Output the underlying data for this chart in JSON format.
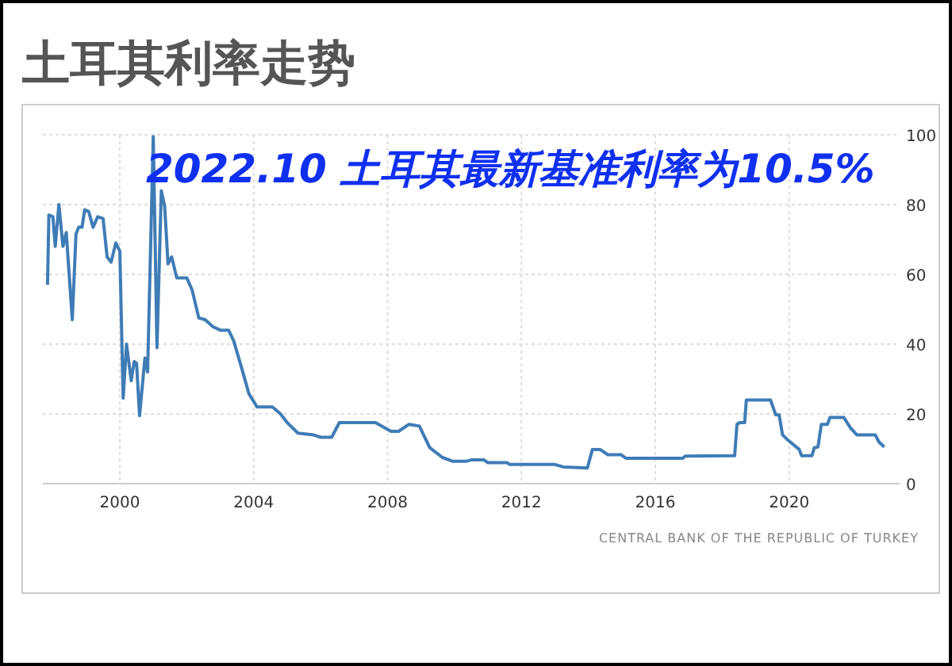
{
  "chart_data": {
    "type": "line",
    "title": "土耳其利率走势",
    "annotations": [
      "2022.10 土耳其最新基准利率为10.5%",
      "CENTRAL BANK OF THE REPUBLIC OF TURKEY"
    ],
    "x": [
      1997.84,
      1997.88,
      1998.0,
      1998.07,
      1998.18,
      1998.3,
      1998.4,
      1998.58,
      1998.69,
      1998.77,
      1998.87,
      1998.95,
      1999.07,
      1999.2,
      1999.34,
      1999.5,
      1999.62,
      1999.74,
      1999.88,
      2000.0,
      2000.1,
      2000.2,
      2000.34,
      2000.43,
      2000.5,
      2000.59,
      2000.75,
      2000.83,
      2001.0,
      2001.11,
      2001.24,
      2001.34,
      2001.44,
      2001.55,
      2001.7,
      2002.0,
      2002.16,
      2002.36,
      2002.55,
      2002.78,
      2003.0,
      2003.25,
      2003.4,
      2003.63,
      2003.86,
      2004.1,
      2004.56,
      2004.8,
      2005.0,
      2005.32,
      2005.78,
      2006.0,
      2006.33,
      2006.56,
      2007.64,
      2008.1,
      2008.33,
      2008.64,
      2008.95,
      2009.26,
      2009.64,
      2009.95,
      2010.34,
      2010.5,
      2010.88,
      2011.0,
      2011.57,
      2011.65,
      2013.0,
      2013.25,
      2013.97,
      2014.12,
      2014.35,
      2014.58,
      2014.97,
      2015.12,
      2016.82,
      2016.9,
      2018.37,
      2018.44,
      2018.52,
      2018.67,
      2018.72,
      2019.44,
      2019.6,
      2019.7,
      2019.8,
      2019.96,
      2020.3,
      2020.37,
      2020.68,
      2020.75,
      2020.86,
      2020.96,
      2021.14,
      2021.22,
      2021.63,
      2021.83,
      2022.02,
      2022.57,
      2022.68,
      2022.84
    ],
    "series": [
      {
        "color": "#3f7cb6",
        "values": [
          57,
          77,
          76.5,
          68,
          80,
          68,
          72,
          47,
          71.5,
          73.5,
          73.5,
          78.5,
          78,
          73.5,
          76.5,
          76,
          65,
          63.5,
          69,
          66.7,
          24.5,
          40,
          29.5,
          35,
          34.5,
          19.5,
          36,
          32,
          99.5,
          39,
          84,
          79.5,
          63,
          65,
          59,
          59,
          55.5,
          47.5,
          47,
          45,
          44,
          44,
          41,
          33.5,
          25.7,
          22,
          22,
          20,
          17.5,
          14.5,
          14,
          13.3,
          13.3,
          17.5,
          17.5,
          15,
          15,
          17,
          16.5,
          10.3,
          7.5,
          6.4,
          6.4,
          6.8,
          6.8,
          6,
          6,
          5.5,
          5.5,
          4.8,
          4.5,
          9.8,
          9.8,
          8.3,
          8.3,
          7.3,
          7.3,
          7.9,
          8,
          17,
          17.5,
          17.5,
          24,
          24,
          19.7,
          19.7,
          14,
          12.5,
          9.8,
          8,
          8,
          10.3,
          10.5,
          17,
          17,
          19,
          19,
          16,
          14,
          14,
          12,
          10.5
        ]
      }
    ],
    "xlim": [
      1997.7,
      2023.3
    ],
    "xticks": [
      2000,
      2004,
      2008,
      2012,
      2016,
      2020
    ],
    "ylim": [
      0,
      100
    ],
    "yticks": [
      0,
      20,
      40,
      60,
      80,
      100
    ],
    "grid": true
  }
}
